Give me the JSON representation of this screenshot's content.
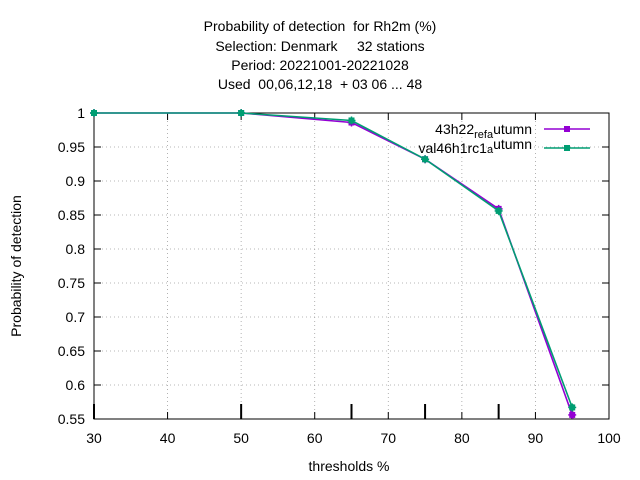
{
  "title_lines": [
    "Probability of detection  for Rh2m (%)",
    "Selection: Denmark     32 stations",
    "Period: 20221001-20221028",
    "Used  00,06,12,18  + 03 06 ... 48"
  ],
  "chart_data": {
    "type": "line",
    "xlabel": "thresholds %",
    "ylabel": "Probability of detection",
    "xlim": [
      30,
      100
    ],
    "ylim": [
      0.55,
      1.0
    ],
    "x_ticks": [
      30,
      40,
      50,
      60,
      70,
      80,
      90,
      100
    ],
    "y_ticks": [
      0.55,
      0.6,
      0.65,
      0.7,
      0.75,
      0.8,
      0.85,
      0.9,
      0.95,
      1
    ],
    "grid": true,
    "legend_position": "top-right",
    "threshold_markers_x": [
      30,
      50,
      65,
      75,
      85,
      95
    ],
    "series": [
      {
        "name_main": "43h22",
        "name_sub": "ref",
        "name_mid": "a",
        "name_end": "utumn",
        "color": "#9400d3",
        "x": [
          30,
          50,
          65,
          75,
          85,
          95
        ],
        "y": [
          1.0,
          1.0,
          0.986,
          0.932,
          0.859,
          0.556
        ]
      },
      {
        "name_main": "val46h1rc1",
        "name_sub": "",
        "name_mid": "a",
        "name_end": "utumn",
        "color": "#009e73",
        "x": [
          30,
          50,
          65,
          75,
          85,
          95
        ],
        "y": [
          1.0,
          1.0,
          0.989,
          0.932,
          0.856,
          0.567
        ]
      }
    ]
  }
}
